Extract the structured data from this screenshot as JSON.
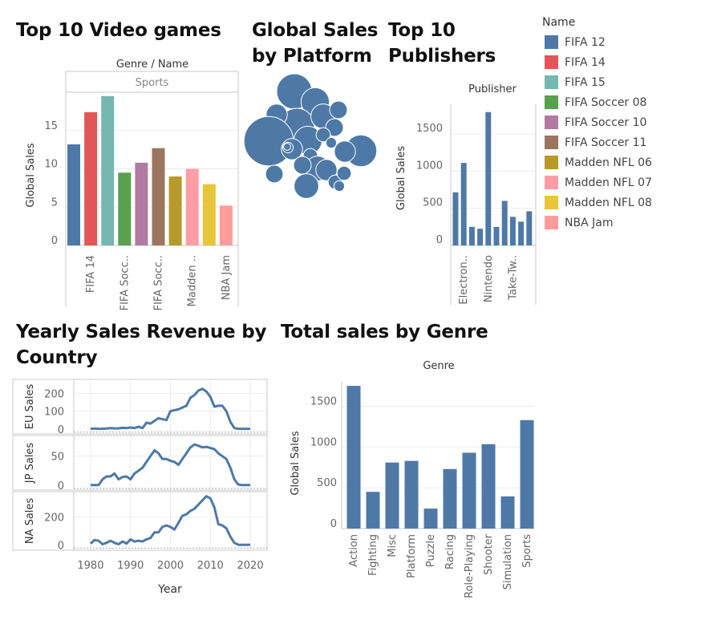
{
  "titles": {
    "top_games": "Top 10 Video games",
    "platform": "Global Sales\nby Platform",
    "publishers": "Top 10\nPublishers",
    "yearly": "Yearly Sales Revenue by\nCountry",
    "genre": "Total sales by Genre"
  },
  "legend": {
    "title": "Name",
    "items": [
      {
        "label": "FIFA 12",
        "color": "#4e79a7"
      },
      {
        "label": "FIFA 14",
        "color": "#e15759"
      },
      {
        "label": "FIFA 15",
        "color": "#76b7b2"
      },
      {
        "label": "FIFA Soccer 08",
        "color": "#59a14f"
      },
      {
        "label": "FIFA Soccer 10",
        "color": "#b07aa1"
      },
      {
        "label": "FIFA Soccer 11",
        "color": "#9c755f"
      },
      {
        "label": "Madden NFL 06",
        "color": "#b8992c"
      },
      {
        "label": "Madden NFL 07",
        "color": "#ff9da7"
      },
      {
        "label": "Madden NFL 08",
        "color": "#e8c53a"
      },
      {
        "label": "NBA Jam",
        "color": "#ff9d9a"
      }
    ]
  },
  "chart_data": [
    {
      "id": "top_games",
      "type": "bar",
      "header_label": "Genre / Name",
      "facet": "Sports",
      "ylabel": "Global Sales",
      "ylim": [
        0,
        20
      ],
      "yticks": [
        0,
        5,
        10,
        15
      ],
      "categories": [
        "FIFA 12",
        "FIFA 14",
        "FIFA 15",
        "FIFA Soccer 08",
        "FIFA Soccer 10",
        "FIFA Soccer 11",
        "Madden NFL 06",
        "Madden NFL 07",
        "Madden NFL 08",
        "NBA Jam"
      ],
      "values": [
        13.2,
        17.4,
        19.5,
        9.5,
        10.8,
        12.7,
        9.0,
        10.0,
        8.0,
        5.2
      ],
      "tick_labels": [
        "FIFA 14",
        "FIFA Socc..",
        "FIFA Socc..",
        "Madden ..",
        "NBA Jam"
      ],
      "grid": true
    },
    {
      "id": "platform",
      "type": "bubble",
      "values": [
        1.0,
        0.8,
        1.0,
        0.7,
        0.6,
        1.4,
        0.8,
        0.5,
        0.5,
        0.4,
        0.6,
        0.7,
        0.9,
        0.6,
        0.6,
        0.4,
        0.5,
        0.7,
        0.4,
        0.3,
        0.3,
        0.5,
        0.2,
        0.4,
        0.3
      ]
    },
    {
      "id": "publishers",
      "type": "bar",
      "header_label": "Publisher",
      "ylabel": "Global Sales",
      "ylim": [
        0,
        1900
      ],
      "yticks": [
        0,
        500,
        1000,
        1500
      ],
      "values": [
        715,
        1110,
        250,
        225,
        1795,
        250,
        600,
        385,
        320,
        460
      ],
      "tick_labels": [
        "Electron..",
        "Nintendo",
        "Take-Tw.."
      ],
      "grid": true
    },
    {
      "id": "yearly",
      "type": "line",
      "xlabel": "Year",
      "xlim": [
        1977,
        2023
      ],
      "xticks": [
        1980,
        1990,
        2000,
        2010,
        2020
      ],
      "x": [
        1980,
        1981,
        1982,
        1983,
        1984,
        1985,
        1986,
        1987,
        1988,
        1989,
        1990,
        1991,
        1992,
        1993,
        1994,
        1995,
        1996,
        1997,
        1998,
        1999,
        2000,
        2001,
        2002,
        2003,
        2004,
        2005,
        2006,
        2007,
        2008,
        2009,
        2010,
        2011,
        2012,
        2013,
        2014,
        2015,
        2016,
        2017,
        2018,
        2019,
        2020
      ],
      "series": [
        {
          "name": "EU Sales",
          "ylim": [
            -10,
            260
          ],
          "yticks": [
            0,
            100,
            200
          ],
          "values": [
            1,
            2,
            1,
            1,
            2,
            5,
            3,
            3,
            6,
            5,
            8,
            5,
            12,
            5,
            35,
            30,
            45,
            60,
            55,
            50,
            100,
            105,
            110,
            120,
            130,
            175,
            190,
            215,
            225,
            210,
            180,
            125,
            130,
            130,
            100,
            40,
            5,
            1,
            1,
            1,
            1
          ]
        },
        {
          "name": "JP Sales",
          "ylim": [
            -3,
            80
          ],
          "yticks": [
            0,
            50
          ],
          "values": [
            0,
            0,
            0,
            10,
            15,
            15,
            20,
            10,
            14,
            15,
            10,
            20,
            25,
            30,
            40,
            50,
            60,
            55,
            45,
            45,
            42,
            40,
            35,
            45,
            55,
            65,
            70,
            68,
            65,
            66,
            64,
            62,
            55,
            50,
            45,
            30,
            10,
            1,
            0,
            0,
            0
          ]
        },
        {
          "name": "NA Sales",
          "ylim": [
            -15,
            360
          ],
          "yticks": [
            0,
            200
          ],
          "values": [
            10,
            35,
            30,
            5,
            15,
            30,
            15,
            5,
            25,
            10,
            40,
            25,
            30,
            25,
            40,
            50,
            90,
            90,
            130,
            140,
            130,
            110,
            160,
            210,
            220,
            245,
            260,
            290,
            320,
            350,
            335,
            270,
            150,
            140,
            120,
            60,
            15,
            1,
            1,
            1,
            1
          ]
        }
      ],
      "grid": true
    },
    {
      "id": "genre",
      "type": "bar",
      "header_label": "Genre",
      "ylabel": "Global Sales",
      "ylim": [
        0,
        1800
      ],
      "yticks": [
        0,
        500,
        1000,
        1500
      ],
      "categories": [
        "Action",
        "Fighting",
        "Misc",
        "Platform",
        "Puzzle",
        "Racing",
        "Role-Playing",
        "Shooter",
        "Simulation",
        "Sports"
      ],
      "values": [
        1750,
        450,
        810,
        830,
        245,
        730,
        930,
        1035,
        395,
        1330
      ],
      "grid": true
    }
  ]
}
